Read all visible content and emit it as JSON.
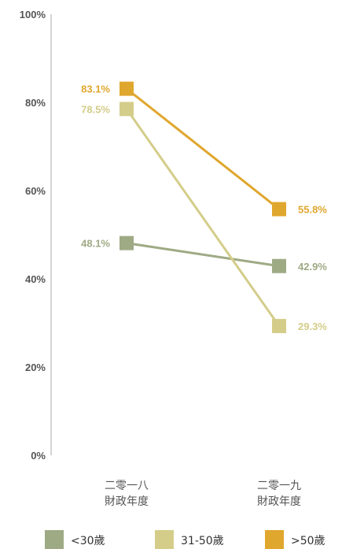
{
  "chart_data": {
    "type": "line",
    "categories": [
      [
        "二零一八",
        "財政年度"
      ],
      [
        "二零一九",
        "財政年度"
      ]
    ],
    "ylim": [
      0,
      100
    ],
    "yticks": [
      "0%",
      "20%",
      "40%",
      "60%",
      "80%",
      "100%"
    ],
    "grid": false,
    "legend_position": "bottom",
    "series": [
      {
        "name": "<30歲",
        "color": "#9eaa84",
        "values": [
          48.1,
          42.9
        ],
        "labels": [
          "48.1%",
          "42.9%"
        ]
      },
      {
        "name": "31-50歲",
        "color": "#d4cd8a",
        "values": [
          78.5,
          29.3
        ],
        "labels": [
          "78.5%",
          "29.3%"
        ]
      },
      {
        "name": ">50歲",
        "color": "#e0a72e",
        "values": [
          83.1,
          55.8
        ],
        "labels": [
          "83.1%",
          "55.8%"
        ]
      }
    ]
  }
}
